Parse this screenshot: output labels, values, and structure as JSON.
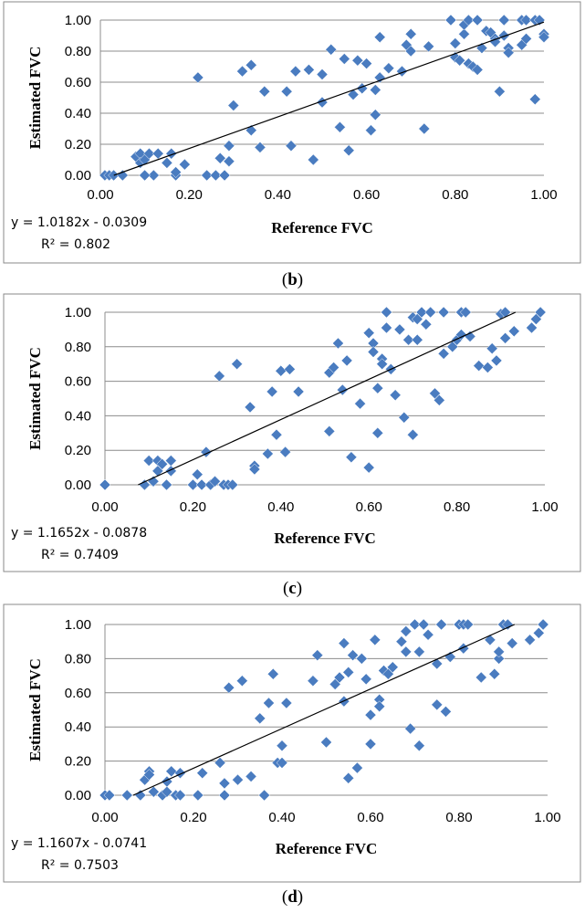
{
  "chart_data": [
    {
      "type": "scatter",
      "panel_label": "b",
      "xlabel": "Reference FVC",
      "ylabel": "Estimated FVC",
      "xlim": [
        0,
        1
      ],
      "ylim": [
        0,
        1
      ],
      "xticks": [
        "0.00",
        "0.20",
        "0.40",
        "0.60",
        "0.80",
        "1.00"
      ],
      "yticks": [
        "0.00",
        "0.20",
        "0.40",
        "0.60",
        "0.80",
        "1.00"
      ],
      "equation": "y = 1.0182x - 0.0309",
      "r_squared": "R² = 0.802",
      "trendline": {
        "slope": 1.0182,
        "intercept": -0.0309
      },
      "points": [
        [
          0.01,
          0
        ],
        [
          0.02,
          0
        ],
        [
          0.03,
          0
        ],
        [
          0.05,
          0
        ],
        [
          0.08,
          0.12
        ],
        [
          0.09,
          0.14
        ],
        [
          0.09,
          0.08
        ],
        [
          0.1,
          0.1
        ],
        [
          0.11,
          0.14
        ],
        [
          0.12,
          0
        ],
        [
          0.1,
          0
        ],
        [
          0.13,
          0.14
        ],
        [
          0.15,
          0.08
        ],
        [
          0.17,
          0
        ],
        [
          0.16,
          0.14
        ],
        [
          0.19,
          0.07
        ],
        [
          0.17,
          0.02
        ],
        [
          0.22,
          0.63
        ],
        [
          0.24,
          0
        ],
        [
          0.26,
          0
        ],
        [
          0.27,
          0.11
        ],
        [
          0.28,
          0
        ],
        [
          0.29,
          0.19
        ],
        [
          0.29,
          0.09
        ],
        [
          0.3,
          0.45
        ],
        [
          0.32,
          0.67
        ],
        [
          0.34,
          0.71
        ],
        [
          0.34,
          0.29
        ],
        [
          0.36,
          0.18
        ],
        [
          0.37,
          0.54
        ],
        [
          0.42,
          0.54
        ],
        [
          0.43,
          0.19
        ],
        [
          0.44,
          0.67
        ],
        [
          0.47,
          0.68
        ],
        [
          0.48,
          0.1
        ],
        [
          0.5,
          0.47
        ],
        [
          0.5,
          0.65
        ],
        [
          0.52,
          0.81
        ],
        [
          0.54,
          0.31
        ],
        [
          0.55,
          0.75
        ],
        [
          0.56,
          0.16
        ],
        [
          0.57,
          0.52
        ],
        [
          0.58,
          0.74
        ],
        [
          0.59,
          0.56
        ],
        [
          0.6,
          0.72
        ],
        [
          0.61,
          0.29
        ],
        [
          0.62,
          0.39
        ],
        [
          0.62,
          0.55
        ],
        [
          0.63,
          0.63
        ],
        [
          0.63,
          0.89
        ],
        [
          0.65,
          0.69
        ],
        [
          0.68,
          0.67
        ],
        [
          0.69,
          0.84
        ],
        [
          0.7,
          0.91
        ],
        [
          0.7,
          0.8
        ],
        [
          0.73,
          0.3
        ],
        [
          0.74,
          0.83
        ],
        [
          0.79,
          1
        ],
        [
          0.8,
          0.85
        ],
        [
          0.8,
          0.76
        ],
        [
          0.81,
          0.74
        ],
        [
          0.82,
          0.91
        ],
        [
          0.82,
          0.97
        ],
        [
          0.83,
          0.72
        ],
        [
          0.83,
          1
        ],
        [
          0.84,
          0.7
        ],
        [
          0.85,
          0.68
        ],
        [
          0.85,
          1
        ],
        [
          0.86,
          0.82
        ],
        [
          0.87,
          0.93
        ],
        [
          0.88,
          0.92
        ],
        [
          0.89,
          0.88
        ],
        [
          0.89,
          0.86
        ],
        [
          0.9,
          0.54
        ],
        [
          0.91,
          1
        ],
        [
          0.91,
          0.9
        ],
        [
          0.92,
          0.82
        ],
        [
          0.92,
          0.79
        ],
        [
          0.95,
          0.84
        ],
        [
          0.95,
          1
        ],
        [
          0.96,
          0.88
        ],
        [
          0.96,
          1
        ],
        [
          0.98,
          0.49
        ],
        [
          0.98,
          1
        ],
        [
          0.99,
          1
        ],
        [
          1.0,
          0.91
        ],
        [
          1.0,
          0.89
        ]
      ]
    },
    {
      "type": "scatter",
      "panel_label": "c",
      "xlabel": "Reference FVC",
      "ylabel": "Estimated FVC",
      "xlim": [
        0,
        1
      ],
      "ylim": [
        0,
        1
      ],
      "xticks": [
        "0.00",
        "0.20",
        "0.40",
        "0.60",
        "0.80",
        "1.00"
      ],
      "yticks": [
        "0.00",
        "0.20",
        "0.40",
        "0.60",
        "0.80",
        "1.00"
      ],
      "equation": "y = 1.1652x - 0.0878",
      "r_squared": "R² = 0.7409",
      "trendline": {
        "slope": 1.1652,
        "intercept": -0.0878
      },
      "points": [
        [
          0,
          0
        ],
        [
          0.09,
          0
        ],
        [
          0.1,
          0.14
        ],
        [
          0.11,
          0.02
        ],
        [
          0.12,
          0.08
        ],
        [
          0.12,
          0.14
        ],
        [
          0.13,
          0.12
        ],
        [
          0.14,
          0
        ],
        [
          0.15,
          0.14
        ],
        [
          0.15,
          0.08
        ],
        [
          0.2,
          0
        ],
        [
          0.21,
          0.06
        ],
        [
          0.22,
          0
        ],
        [
          0.23,
          0.19
        ],
        [
          0.24,
          0
        ],
        [
          0.25,
          0.02
        ],
        [
          0.27,
          0
        ],
        [
          0.26,
          0.63
        ],
        [
          0.28,
          0
        ],
        [
          0.29,
          0
        ],
        [
          0.3,
          0.7
        ],
        [
          0.33,
          0.45
        ],
        [
          0.34,
          0.11
        ],
        [
          0.34,
          0.09
        ],
        [
          0.37,
          0.18
        ],
        [
          0.38,
          0.54
        ],
        [
          0.39,
          0.29
        ],
        [
          0.4,
          0.66
        ],
        [
          0.41,
          0.19
        ],
        [
          0.42,
          0.67
        ],
        [
          0.44,
          0.54
        ],
        [
          0.51,
          0.31
        ],
        [
          0.51,
          0.65
        ],
        [
          0.52,
          0.68
        ],
        [
          0.53,
          0.82
        ],
        [
          0.54,
          0.55
        ],
        [
          0.55,
          0.72
        ],
        [
          0.56,
          0.16
        ],
        [
          0.58,
          0.47
        ],
        [
          0.6,
          0.1
        ],
        [
          0.6,
          0.88
        ],
        [
          0.61,
          0.82
        ],
        [
          0.61,
          0.77
        ],
        [
          0.62,
          0.3
        ],
        [
          0.62,
          0.56
        ],
        [
          0.63,
          0.73
        ],
        [
          0.63,
          0.7
        ],
        [
          0.64,
          1
        ],
        [
          0.64,
          0.91
        ],
        [
          0.65,
          0.67
        ],
        [
          0.66,
          0.52
        ],
        [
          0.67,
          0.9
        ],
        [
          0.68,
          0.39
        ],
        [
          0.69,
          0.84
        ],
        [
          0.7,
          0.97
        ],
        [
          0.7,
          0.29
        ],
        [
          0.71,
          0.84
        ],
        [
          0.71,
          0.96
        ],
        [
          0.72,
          1
        ],
        [
          0.73,
          0.93
        ],
        [
          0.74,
          1
        ],
        [
          0.75,
          0.53
        ],
        [
          0.76,
          0.49
        ],
        [
          0.77,
          0.76
        ],
        [
          0.77,
          1
        ],
        [
          0.79,
          0.8
        ],
        [
          0.8,
          0.84
        ],
        [
          0.81,
          1
        ],
        [
          0.82,
          1
        ],
        [
          0.81,
          0.87
        ],
        [
          0.83,
          0.86
        ],
        [
          0.85,
          0.69
        ],
        [
          0.87,
          0.68
        ],
        [
          0.88,
          0.79
        ],
        [
          0.89,
          0.72
        ],
        [
          0.9,
          0.99
        ],
        [
          0.91,
          1
        ],
        [
          0.91,
          0.85
        ],
        [
          0.93,
          0.89
        ],
        [
          0.97,
          0.91
        ],
        [
          0.99,
          1
        ],
        [
          0.98,
          0.96
        ]
      ]
    },
    {
      "type": "scatter",
      "panel_label": "d",
      "xlabel": "Reference FVC",
      "ylabel": "Estimated FVC",
      "xlim": [
        0,
        1
      ],
      "ylim": [
        0,
        1
      ],
      "xticks": [
        "0.00",
        "0.20",
        "0.40",
        "0.60",
        "0.80",
        "1.00"
      ],
      "yticks": [
        "0.00",
        "0.20",
        "0.40",
        "0.60",
        "0.80",
        "1.00"
      ],
      "equation": "y = 1.1607x - 0.0741",
      "r_squared": "R² = 0.7503",
      "trendline": {
        "slope": 1.1607,
        "intercept": -0.0741
      },
      "points": [
        [
          0,
          0
        ],
        [
          0.01,
          0
        ],
        [
          0.05,
          0
        ],
        [
          0.08,
          0
        ],
        [
          0.09,
          0.09
        ],
        [
          0.1,
          0.14
        ],
        [
          0.1,
          0.12
        ],
        [
          0.11,
          0.02
        ],
        [
          0.13,
          0
        ],
        [
          0.14,
          0.02
        ],
        [
          0.14,
          0.08
        ],
        [
          0.15,
          0.14
        ],
        [
          0.16,
          0
        ],
        [
          0.17,
          0.13
        ],
        [
          0.17,
          0
        ],
        [
          0.21,
          0
        ],
        [
          0.22,
          0.13
        ],
        [
          0.26,
          0.19
        ],
        [
          0.27,
          0.07
        ],
        [
          0.27,
          0
        ],
        [
          0.28,
          0.63
        ],
        [
          0.3,
          0.09
        ],
        [
          0.31,
          0.67
        ],
        [
          0.33,
          0.11
        ],
        [
          0.35,
          0.45
        ],
        [
          0.36,
          0
        ],
        [
          0.37,
          0.54
        ],
        [
          0.38,
          0.71
        ],
        [
          0.39,
          0.19
        ],
        [
          0.4,
          0.29
        ],
        [
          0.41,
          0.54
        ],
        [
          0.4,
          0.19
        ],
        [
          0.47,
          0.67
        ],
        [
          0.48,
          0.82
        ],
        [
          0.5,
          0.31
        ],
        [
          0.52,
          0.65
        ],
        [
          0.53,
          0.69
        ],
        [
          0.54,
          0.55
        ],
        [
          0.55,
          0.72
        ],
        [
          0.55,
          0.1
        ],
        [
          0.54,
          0.89
        ],
        [
          0.56,
          0.82
        ],
        [
          0.57,
          0.16
        ],
        [
          0.58,
          0.8
        ],
        [
          0.59,
          0.68
        ],
        [
          0.6,
          0.47
        ],
        [
          0.6,
          0.3
        ],
        [
          0.61,
          0.91
        ],
        [
          0.62,
          0.56
        ],
        [
          0.62,
          0.52
        ],
        [
          0.63,
          0.73
        ],
        [
          0.64,
          0.71
        ],
        [
          0.65,
          0.75
        ],
        [
          0.67,
          0.9
        ],
        [
          0.68,
          0.84
        ],
        [
          0.68,
          0.96
        ],
        [
          0.69,
          0.39
        ],
        [
          0.7,
          1
        ],
        [
          0.71,
          0.84
        ],
        [
          0.71,
          0.29
        ],
        [
          0.72,
          1
        ],
        [
          0.73,
          0.94
        ],
        [
          0.75,
          0.77
        ],
        [
          0.76,
          1
        ],
        [
          0.75,
          0.53
        ],
        [
          0.77,
          0.49
        ],
        [
          0.78,
          0.81
        ],
        [
          0.8,
          1
        ],
        [
          0.81,
          1
        ],
        [
          0.81,
          0.86
        ],
        [
          0.82,
          1
        ],
        [
          0.85,
          0.69
        ],
        [
          0.87,
          0.91
        ],
        [
          0.88,
          0.71
        ],
        [
          0.89,
          0.8
        ],
        [
          0.89,
          0.84
        ],
        [
          0.9,
          1
        ],
        [
          0.91,
          1
        ],
        [
          0.92,
          0.89
        ],
        [
          0.96,
          0.91
        ],
        [
          0.98,
          0.95
        ],
        [
          0.99,
          1
        ],
        [
          0.99,
          1
        ]
      ]
    }
  ]
}
